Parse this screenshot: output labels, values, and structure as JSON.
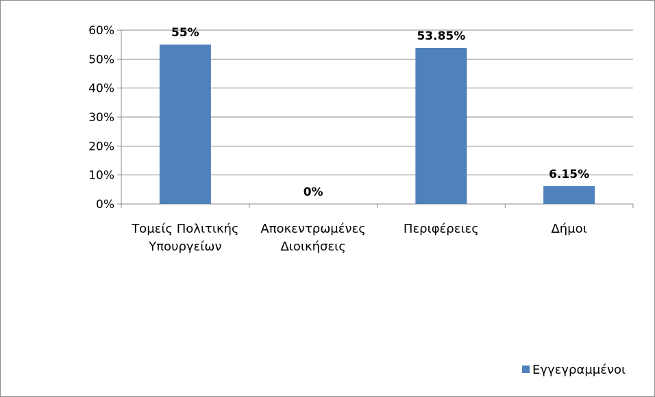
{
  "chart_data": {
    "type": "bar",
    "categories": [
      [
        "Τομείς Πολιτικής",
        "Υπουργείων"
      ],
      [
        "Αποκεντρωμένες",
        "Διοικήσεις"
      ],
      [
        "Περιφέρειες"
      ],
      [
        "Δήμοι"
      ]
    ],
    "series": [
      {
        "name": "Εγγεγραμμένοι",
        "values": [
          55,
          0,
          53.85,
          6.15
        ],
        "data_labels": [
          "55%",
          "0%",
          "53.85%",
          "6.15%"
        ],
        "color": "#4f81bd"
      }
    ],
    "y_ticks": [
      "0%",
      "10%",
      "20%",
      "30%",
      "40%",
      "50%",
      "60%"
    ],
    "ylim": [
      0,
      60
    ],
    "grid": true,
    "legend_position": "right"
  }
}
